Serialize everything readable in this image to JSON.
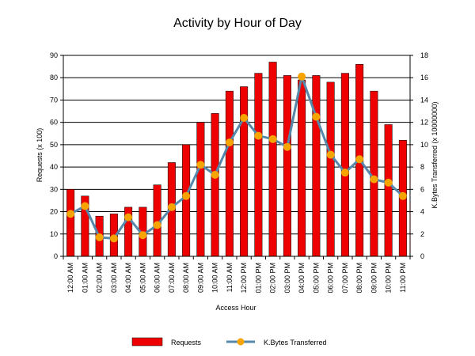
{
  "chart_data": {
    "type": "bar",
    "title": "Activity by Hour of Day",
    "xlabel": "Access Hour",
    "ylabel": "Requests (x 100)",
    "y2label": "K.Bytes Transferred (x 10000000)",
    "ylim": [
      0,
      90
    ],
    "y2lim": [
      0,
      18
    ],
    "yticks": [
      0,
      10,
      20,
      30,
      40,
      50,
      60,
      70,
      80,
      90
    ],
    "y2ticks": [
      0,
      2,
      4,
      6,
      8,
      10,
      12,
      14,
      16,
      18
    ],
    "grid": true,
    "legend_position": "bottom",
    "categories": [
      "12:00 AM",
      "01:00 AM",
      "02:00 AM",
      "03:00 AM",
      "04:00 AM",
      "05:00 AM",
      "06:00 AM",
      "07:00 AM",
      "08:00 AM",
      "09:00 AM",
      "10:00 AM",
      "11:00 AM",
      "12:00 PM",
      "01:00 PM",
      "02:00 PM",
      "03:00 PM",
      "04:00 PM",
      "05:00 PM",
      "06:00 PM",
      "07:00 PM",
      "08:00 PM",
      "09:00 PM",
      "10:00 PM",
      "11:00 PM"
    ],
    "series": [
      {
        "name": "Requests",
        "type": "bar",
        "axis": "left",
        "color": "#ee0000",
        "values": [
          30,
          27,
          18,
          19,
          22,
          22,
          32,
          42,
          50,
          60,
          64,
          74,
          76,
          82,
          87,
          81,
          79,
          81,
          78,
          82,
          86,
          74,
          59,
          52
        ]
      },
      {
        "name": "K.Bytes Transferred",
        "type": "line",
        "axis": "right",
        "color": "#5588aa",
        "marker_color": "#f7a400",
        "values": [
          3.8,
          4.5,
          1.7,
          1.6,
          3.5,
          1.9,
          2.8,
          4.4,
          5.4,
          8.2,
          7.3,
          10.2,
          12.4,
          10.8,
          10.5,
          9.8,
          16.1,
          12.5,
          9.1,
          7.5,
          8.7,
          6.9,
          6.6,
          5.4
        ]
      }
    ]
  }
}
